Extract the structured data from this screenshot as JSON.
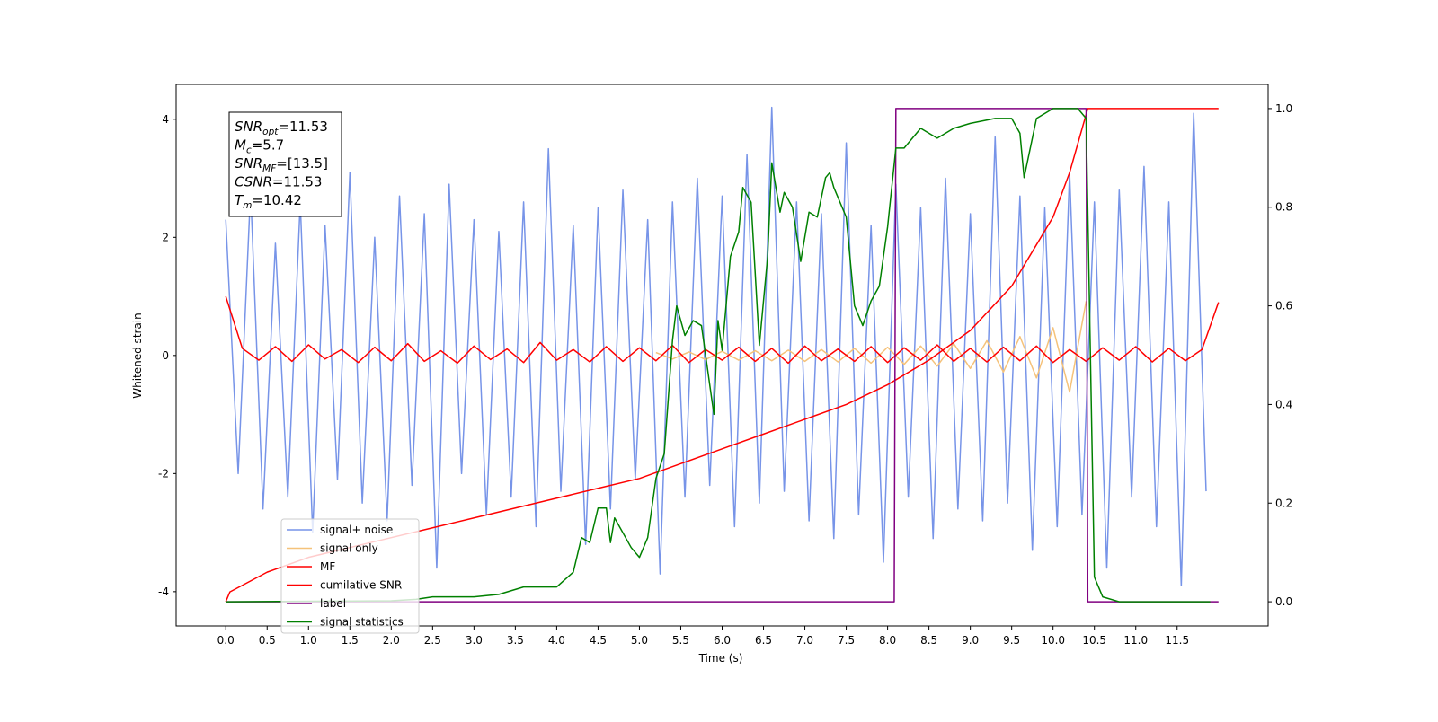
{
  "chart_data": {
    "type": "line",
    "xlabel": "Time (s)",
    "ylabel": "Whitened strain",
    "xlim": [
      -0.6,
      12.6
    ],
    "ylim": [
      -4.58,
      4.59
    ],
    "y2lim": [
      -0.049,
      1.049
    ],
    "xticks": [
      {
        "value": 0,
        "label": "0.0"
      },
      {
        "value": 0.5,
        "label": "0.5"
      },
      {
        "value": 1,
        "label": "1.0"
      },
      {
        "value": 1.5,
        "label": "1.5"
      },
      {
        "value": 2,
        "label": "2.0"
      },
      {
        "value": 2.5,
        "label": "2.5"
      },
      {
        "value": 3,
        "label": "3.0"
      },
      {
        "value": 3.5,
        "label": "3.5"
      },
      {
        "value": 4,
        "label": "4.0"
      },
      {
        "value": 4.5,
        "label": "4.5"
      },
      {
        "value": 5,
        "label": "5.0"
      },
      {
        "value": 5.5,
        "label": "5.5"
      },
      {
        "value": 6,
        "label": "6.0"
      },
      {
        "value": 6.5,
        "label": "6.5"
      },
      {
        "value": 7,
        "label": "7.0"
      },
      {
        "value": 7.5,
        "label": "7.5"
      },
      {
        "value": 8,
        "label": "8.0"
      },
      {
        "value": 8.5,
        "label": "8.5"
      },
      {
        "value": 9,
        "label": "9.0"
      },
      {
        "value": 9.5,
        "label": "9.5"
      },
      {
        "value": 10,
        "label": "10.0"
      },
      {
        "value": 10.5,
        "label": "10.5"
      },
      {
        "value": 11,
        "label": "11.0"
      },
      {
        "value": 11.5,
        "label": "11.5"
      }
    ],
    "yticks": [
      -4,
      -2,
      0,
      2,
      4
    ],
    "y2ticks": [
      {
        "value": 0,
        "label": "0.0"
      },
      {
        "value": 0.2,
        "label": "0.2"
      },
      {
        "value": 0.4,
        "label": "0.4"
      },
      {
        "value": 0.6,
        "label": "0.6"
      },
      {
        "value": 0.8,
        "label": "0.8"
      },
      {
        "value": 1,
        "label": "1.0"
      }
    ],
    "legend": "lower left",
    "annotations": [
      {
        "text": "SNR",
        "sub": "opt",
        "rest": "=11.53"
      },
      {
        "text": "M",
        "sub": "c",
        "rest": "=5.7"
      },
      {
        "text": "SNR",
        "sub": "MF",
        "rest": "=[13.5]"
      },
      {
        "text": "CSNR",
        "rest": "=11.53"
      },
      {
        "text": "T",
        "sub": "m",
        "rest": "=10.42"
      }
    ],
    "series": [
      {
        "name": "signal+ noise",
        "color": "#7794e8",
        "x": [
          0,
          0.15,
          0.3,
          0.45,
          0.6,
          0.75,
          0.9,
          1.05,
          1.2,
          1.35,
          1.5,
          1.65,
          1.8,
          1.95,
          2.1,
          2.25,
          2.4,
          2.55,
          2.7,
          2.85,
          3,
          3.15,
          3.3,
          3.45,
          3.6,
          3.75,
          3.9,
          4.05,
          4.2,
          4.35,
          4.5,
          4.65,
          4.8,
          4.95,
          5.1,
          5.25,
          5.4,
          5.55,
          5.7,
          5.85,
          6,
          6.15,
          6.3,
          6.45,
          6.6,
          6.75,
          6.9,
          7.05,
          7.2,
          7.35,
          7.5,
          7.65,
          7.8,
          7.95,
          8.1,
          8.25,
          8.4,
          8.55,
          8.7,
          8.85,
          9,
          9.15,
          9.3,
          9.45,
          9.6,
          9.75,
          9.9,
          10.05,
          10.2,
          10.35,
          10.5,
          10.65,
          10.8,
          10.95,
          11.1,
          11.25,
          11.4,
          11.55,
          11.7,
          11.85
        ],
        "values": [
          2.3,
          -2.0,
          2.8,
          -2.6,
          1.9,
          -2.4,
          2.6,
          -3.0,
          2.2,
          -2.1,
          3.1,
          -2.5,
          2.0,
          -2.8,
          2.7,
          -2.2,
          2.4,
          -3.6,
          2.9,
          -2.0,
          2.3,
          -2.7,
          2.1,
          -2.4,
          2.6,
          -2.9,
          3.5,
          -2.3,
          2.2,
          -3.2,
          2.5,
          -2.6,
          2.8,
          -2.1,
          2.3,
          -3.7,
          2.6,
          -2.4,
          3.0,
          -2.2,
          2.7,
          -2.9,
          3.4,
          -2.5,
          4.2,
          -2.3,
          2.6,
          -2.8,
          2.4,
          -3.1,
          3.6,
          -2.7,
          2.2,
          -3.5,
          2.9,
          -2.4,
          2.5,
          -3.1,
          3.0,
          -2.6,
          2.4,
          -2.8,
          3.7,
          -2.5,
          2.7,
          -3.3,
          2.5,
          -2.9,
          3.1,
          -2.7,
          2.6,
          -3.6,
          2.8,
          -2.4,
          3.2,
          -2.9,
          2.6,
          -3.9,
          4.1,
          -2.3
        ]
      },
      {
        "name": "signal only",
        "color": "#f5c27a",
        "x": [
          5.2,
          5.4,
          5.6,
          5.8,
          6.0,
          6.2,
          6.4,
          6.6,
          6.8,
          7.0,
          7.2,
          7.4,
          7.6,
          7.8,
          8.0,
          8.2,
          8.4,
          8.6,
          8.8,
          9.0,
          9.2,
          9.4,
          9.6,
          9.8,
          10.0,
          10.2,
          10.4
        ],
        "values": [
          0.05,
          -0.06,
          0.06,
          -0.07,
          0.07,
          -0.08,
          0.08,
          -0.09,
          0.09,
          -0.1,
          0.1,
          -0.11,
          0.12,
          -0.13,
          0.14,
          -0.15,
          0.16,
          -0.18,
          0.2,
          -0.22,
          0.25,
          -0.28,
          0.32,
          -0.38,
          0.47,
          -0.62,
          0.92
        ]
      },
      {
        "name": "MF",
        "color": "#ff0000",
        "x": [
          0,
          0.2,
          0.4,
          0.6,
          0.8,
          1,
          1.2,
          1.4,
          1.6,
          1.8,
          2,
          2.2,
          2.4,
          2.6,
          2.8,
          3,
          3.2,
          3.4,
          3.6,
          3.8,
          4,
          4.2,
          4.4,
          4.6,
          4.8,
          5,
          5.2,
          5.4,
          5.6,
          5.8,
          6,
          6.2,
          6.4,
          6.6,
          6.8,
          7,
          7.2,
          7.4,
          7.6,
          7.8,
          8,
          8.2,
          8.4,
          8.6,
          8.8,
          9,
          9.2,
          9.4,
          9.6,
          9.8,
          10,
          10.2,
          10.4,
          10.6,
          10.8,
          11,
          11.2,
          11.4,
          11.6,
          11.8,
          12
        ],
        "values": [
          1.0,
          0.12,
          -0.08,
          0.15,
          -0.1,
          0.18,
          -0.06,
          0.1,
          -0.12,
          0.14,
          -0.09,
          0.2,
          -0.1,
          0.08,
          -0.13,
          0.16,
          -0.07,
          0.11,
          -0.12,
          0.22,
          -0.08,
          0.1,
          -0.11,
          0.15,
          -0.1,
          0.13,
          -0.09,
          0.17,
          -0.12,
          0.1,
          -0.08,
          0.14,
          -0.1,
          0.12,
          -0.13,
          0.16,
          -0.09,
          0.11,
          -0.1,
          0.15,
          -0.12,
          0.13,
          -0.08,
          0.18,
          -0.1,
          0.12,
          -0.11,
          0.14,
          -0.09,
          0.16,
          -0.12,
          0.1,
          -0.1,
          0.13,
          -0.08,
          0.15,
          -0.11,
          0.12,
          -0.09,
          0.1,
          0.9
        ]
      },
      {
        "name": "cumilative SNR",
        "color": "#ff0000",
        "axis": "y2",
        "x": [
          0,
          0.05,
          0.5,
          1,
          1.5,
          2,
          2.5,
          3,
          3.5,
          4,
          4.5,
          5,
          5.5,
          6,
          6.5,
          7,
          7.5,
          8,
          8.5,
          9,
          9.5,
          10,
          10.2,
          10.42,
          11,
          12
        ],
        "values": [
          0,
          0.02,
          0.06,
          0.09,
          0.11,
          0.13,
          0.15,
          0.17,
          0.19,
          0.21,
          0.23,
          0.25,
          0.28,
          0.31,
          0.34,
          0.37,
          0.4,
          0.44,
          0.49,
          0.55,
          0.64,
          0.78,
          0.87,
          1.0,
          1.0,
          1.0
        ]
      },
      {
        "name": "label",
        "color": "#800080",
        "axis": "y2",
        "x": [
          0,
          8.08,
          8.1,
          10.4,
          10.42,
          12
        ],
        "values": [
          0,
          0,
          1,
          1,
          0,
          0
        ]
      },
      {
        "name": "signal statistics",
        "color": "#008000",
        "axis": "y2",
        "x": [
          0,
          2.0,
          2.3,
          2.5,
          3.0,
          3.3,
          3.6,
          3.9,
          4.0,
          4.2,
          4.3,
          4.4,
          4.5,
          4.6,
          4.65,
          4.7,
          4.9,
          5.0,
          5.1,
          5.2,
          5.3,
          5.4,
          5.45,
          5.55,
          5.65,
          5.75,
          5.9,
          5.95,
          6.0,
          6.1,
          6.2,
          6.25,
          6.35,
          6.45,
          6.55,
          6.6,
          6.7,
          6.75,
          6.85,
          6.95,
          7.05,
          7.15,
          7.25,
          7.3,
          7.35,
          7.5,
          7.6,
          7.7,
          7.8,
          7.9,
          8.0,
          8.1,
          8.2,
          8.4,
          8.6,
          8.8,
          9.0,
          9.3,
          9.5,
          9.6,
          9.65,
          9.8,
          10.0,
          10.3,
          10.4,
          10.5,
          10.6,
          10.8,
          11.9
        ],
        "values": [
          0.0,
          0.002,
          0.005,
          0.01,
          0.01,
          0.015,
          0.03,
          0.03,
          0.03,
          0.06,
          0.13,
          0.12,
          0.19,
          0.19,
          0.12,
          0.17,
          0.11,
          0.09,
          0.13,
          0.25,
          0.3,
          0.53,
          0.6,
          0.54,
          0.57,
          0.56,
          0.38,
          0.57,
          0.51,
          0.7,
          0.75,
          0.84,
          0.81,
          0.52,
          0.7,
          0.89,
          0.79,
          0.83,
          0.8,
          0.69,
          0.79,
          0.78,
          0.86,
          0.87,
          0.84,
          0.78,
          0.6,
          0.56,
          0.61,
          0.64,
          0.76,
          0.92,
          0.92,
          0.96,
          0.94,
          0.96,
          0.97,
          0.98,
          0.98,
          0.95,
          0.86,
          0.98,
          1.0,
          1.0,
          0.98,
          0.05,
          0.01,
          0.0,
          0.0
        ]
      }
    ]
  }
}
